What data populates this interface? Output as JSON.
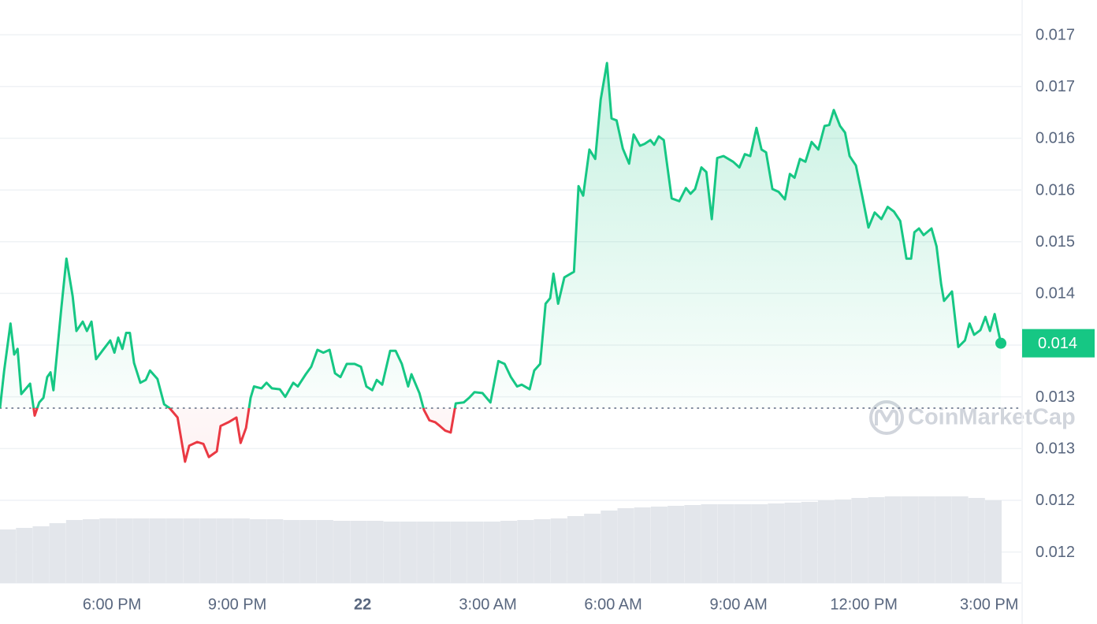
{
  "chart_data": {
    "type": "line",
    "color": "#16c784",
    "down_color": "#ea3943",
    "baseline": 0.01323,
    "current_price": "0.014",
    "watermark": "CoinMarketCap",
    "xlim": [
      -8.68,
      15.77
    ],
    "ylim": [
      0.01137,
      0.01757
    ],
    "xticks": [
      {
        "value": -6,
        "label": "6:00 PM"
      },
      {
        "value": -3,
        "label": "9:00 PM"
      },
      {
        "value": 0,
        "label": "22"
      },
      {
        "value": 3,
        "label": "3:00 AM"
      },
      {
        "value": 6,
        "label": "6:00 AM"
      },
      {
        "value": 9,
        "label": "9:00 AM"
      },
      {
        "value": 12,
        "label": "12:00 PM"
      },
      {
        "value": 15,
        "label": "3:00 PM"
      }
    ],
    "yticks": [
      {
        "value": 0.0117,
        "label": "0.012"
      },
      {
        "value": 0.01225,
        "label": "0.012"
      },
      {
        "value": 0.0128,
        "label": "0.013"
      },
      {
        "value": 0.01335,
        "label": "0.013"
      },
      {
        "value": 0.0139,
        "label": "0.014"
      },
      {
        "value": 0.01445,
        "label": "0.014"
      },
      {
        "value": 0.015,
        "label": "0.015"
      },
      {
        "value": 0.01555,
        "label": "0.016"
      },
      {
        "value": 0.0161,
        "label": "0.016"
      },
      {
        "value": 0.01665,
        "label": "0.017"
      },
      {
        "value": 0.0172,
        "label": "0.017"
      }
    ],
    "grid": true,
    "x": [
      -8.68,
      -8.58,
      -8.43,
      -8.34,
      -8.26,
      -8.17,
      -7.96,
      -7.85,
      -7.74,
      -7.64,
      -7.55,
      -7.47,
      -7.4,
      -7.21,
      -7.09,
      -6.94,
      -6.85,
      -6.7,
      -6.6,
      -6.49,
      -6.38,
      -6.23,
      -6.04,
      -5.94,
      -5.85,
      -5.75,
      -5.66,
      -5.57,
      -5.47,
      -5.32,
      -5.19,
      -5.09,
      -4.91,
      -4.75,
      -4.62,
      -4.43,
      -4.25,
      -4.15,
      -3.96,
      -3.81,
      -3.68,
      -3.49,
      -3.4,
      -3.21,
      -3.02,
      -2.92,
      -2.79,
      -2.68,
      -2.6,
      -2.42,
      -2.3,
      -2.17,
      -1.98,
      -1.85,
      -1.66,
      -1.55,
      -1.36,
      -1.23,
      -1.08,
      -0.94,
      -0.79,
      -0.66,
      -0.53,
      -0.38,
      -0.19,
      -0.04,
      0.09,
      0.23,
      0.34,
      0.47,
      0.66,
      0.79,
      0.94,
      1.09,
      1.17,
      1.36,
      1.47,
      1.6,
      1.74,
      1.85,
      1.98,
      2.11,
      2.23,
      2.42,
      2.55,
      2.68,
      2.87,
      3.06,
      3.25,
      3.4,
      3.55,
      3.7,
      3.81,
      4.0,
      4.11,
      4.25,
      4.38,
      4.49,
      4.57,
      4.68,
      4.83,
      5.06,
      5.17,
      5.28,
      5.43,
      5.57,
      5.7,
      5.85,
      5.96,
      6.08,
      6.23,
      6.38,
      6.49,
      6.64,
      6.75,
      6.89,
      6.98,
      7.09,
      7.21,
      7.4,
      7.58,
      7.74,
      7.85,
      7.96,
      8.11,
      8.23,
      8.36,
      8.49,
      8.64,
      8.87,
      9.02,
      9.15,
      9.28,
      9.43,
      9.55,
      9.66,
      9.81,
      9.96,
      10.11,
      10.23,
      10.34,
      10.47,
      10.6,
      10.75,
      10.91,
      11.06,
      11.17,
      11.28,
      11.43,
      11.55,
      11.66,
      11.81,
      11.96,
      12.11,
      12.26,
      12.42,
      12.57,
      12.72,
      12.87,
      13.02,
      13.13,
      13.21,
      13.32,
      13.43,
      13.62,
      13.74,
      13.85,
      13.92,
      14.11,
      14.26,
      14.42,
      14.53,
      14.64,
      14.79,
      14.91,
      15.02,
      15.13,
      15.28
    ],
    "values": [
      0.01323,
      0.01363,
      0.01413,
      0.0138,
      0.01386,
      0.01338,
      0.01349,
      0.01315,
      0.01329,
      0.01334,
      0.01356,
      0.01361,
      0.01342,
      0.0143,
      0.01482,
      0.01442,
      0.01405,
      0.01415,
      0.01405,
      0.01415,
      0.01375,
      0.01384,
      0.01395,
      0.01382,
      0.01398,
      0.01386,
      0.01403,
      0.01403,
      0.01371,
      0.0135,
      0.01353,
      0.01363,
      0.01354,
      0.01327,
      0.01323,
      0.01313,
      0.01266,
      0.01283,
      0.01287,
      0.01285,
      0.01271,
      0.01277,
      0.01304,
      0.01308,
      0.01313,
      0.01286,
      0.01302,
      0.01334,
      0.01346,
      0.01344,
      0.0135,
      0.01344,
      0.01343,
      0.01335,
      0.0135,
      0.01346,
      0.01359,
      0.01367,
      0.01385,
      0.01382,
      0.01385,
      0.0136,
      0.01356,
      0.0137,
      0.0137,
      0.01367,
      0.01346,
      0.01342,
      0.01353,
      0.01348,
      0.01384,
      0.01384,
      0.0137,
      0.01346,
      0.01359,
      0.01339,
      0.01321,
      0.0131,
      0.01308,
      0.01304,
      0.01299,
      0.01297,
      0.01328,
      0.01329,
      0.01334,
      0.0134,
      0.01339,
      0.01329,
      0.01373,
      0.0137,
      0.01356,
      0.01346,
      0.01348,
      0.01343,
      0.01363,
      0.0137,
      0.01434,
      0.0144,
      0.01466,
      0.01434,
      0.01462,
      0.01468,
      0.01559,
      0.01549,
      0.01598,
      0.01588,
      0.01651,
      0.0169,
      0.01631,
      0.01629,
      0.01599,
      0.01583,
      0.01614,
      0.01602,
      0.01604,
      0.01608,
      0.01603,
      0.01612,
      0.01608,
      0.01546,
      0.01543,
      0.01557,
      0.01551,
      0.01556,
      0.01579,
      0.01574,
      0.01524,
      0.01589,
      0.01591,
      0.01585,
      0.01579,
      0.01593,
      0.01591,
      0.01621,
      0.01598,
      0.01595,
      0.01556,
      0.01553,
      0.01545,
      0.01572,
      0.01568,
      0.01588,
      0.01585,
      0.01606,
      0.01598,
      0.01623,
      0.01624,
      0.0164,
      0.01623,
      0.01616,
      0.01591,
      0.01581,
      0.01549,
      0.01515,
      0.01531,
      0.01524,
      0.01537,
      0.01532,
      0.01522,
      0.01482,
      0.01482,
      0.0151,
      0.01514,
      0.01507,
      0.01514,
      0.01495,
      0.01455,
      0.01437,
      0.01447,
      0.01388,
      0.01395,
      0.01413,
      0.01401,
      0.01406,
      0.0142,
      0.01405,
      0.01423,
      0.01392
    ],
    "volume": {
      "color": "#e3e6eb",
      "ylim": [
        0,
        120
      ],
      "x": [
        -8.5,
        -8.1,
        -7.7,
        -7.3,
        -6.9,
        -6.5,
        -6.1,
        -5.7,
        -5.3,
        -4.9,
        -4.5,
        -4.1,
        -3.7,
        -3.3,
        -2.9,
        -2.5,
        -2.1,
        -1.7,
        -1.3,
        -0.9,
        -0.5,
        -0.1,
        0.3,
        0.7,
        1.1,
        1.5,
        1.9,
        2.3,
        2.7,
        3.1,
        3.5,
        3.9,
        4.3,
        4.7,
        5.1,
        5.5,
        5.9,
        6.3,
        6.7,
        7.1,
        7.5,
        7.9,
        8.3,
        8.7,
        9.1,
        9.5,
        9.9,
        10.3,
        10.7,
        11.1,
        11.5,
        11.9,
        12.3,
        12.7,
        13.1,
        13.5,
        13.9,
        14.3,
        14.7,
        15.1
      ],
      "values": [
        68,
        70,
        72,
        76,
        80,
        81,
        82,
        82,
        82,
        82,
        82,
        82,
        82,
        82,
        82,
        81,
        81,
        80,
        80,
        80,
        79,
        79,
        79,
        78,
        78,
        78,
        78,
        78,
        78,
        78,
        79,
        80,
        81,
        82,
        85,
        88,
        92,
        95,
        96,
        97,
        98,
        99,
        100,
        100,
        100,
        100,
        101,
        102,
        103,
        105,
        106,
        108,
        109,
        110,
        110,
        110,
        110,
        110,
        108,
        105
      ]
    }
  }
}
